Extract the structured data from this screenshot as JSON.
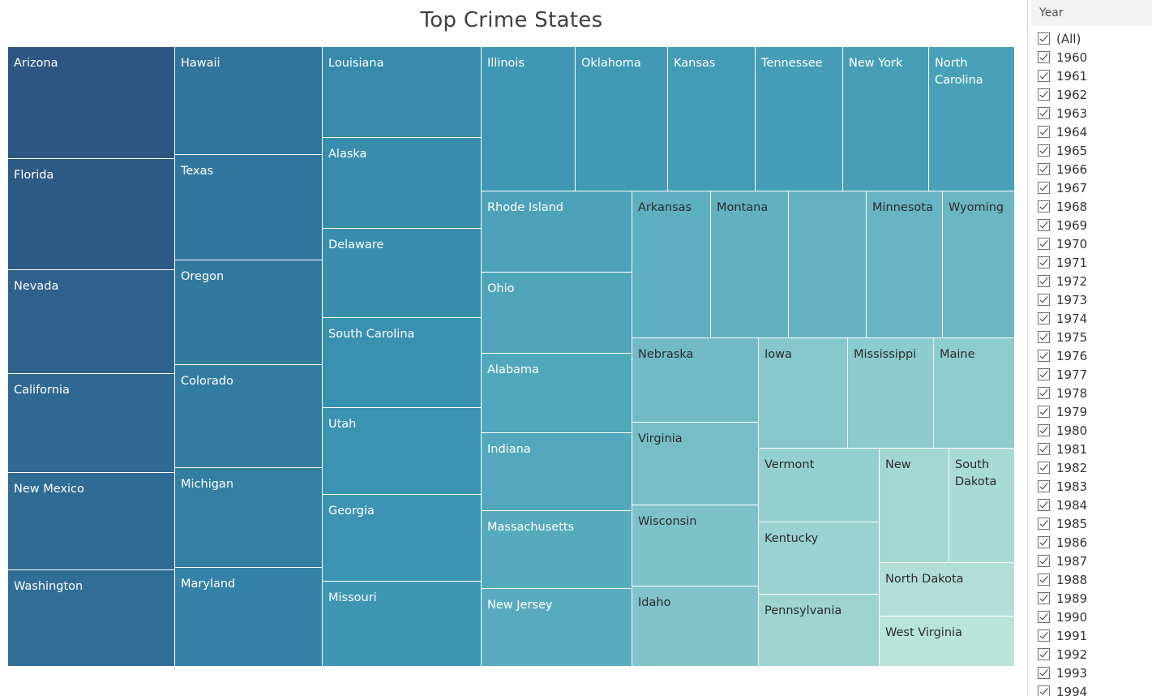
{
  "chart_data": {
    "type": "treemap",
    "title": "Top Crime States",
    "color_low": "#bde6d9",
    "color_high": "#2d5683",
    "tiles": [
      {
        "state": "Arizona"
      },
      {
        "state": "Florida"
      },
      {
        "state": "Nevada"
      },
      {
        "state": "California"
      },
      {
        "state": "New Mexico"
      },
      {
        "state": "Washington"
      },
      {
        "state": "Hawaii"
      },
      {
        "state": "Texas"
      },
      {
        "state": "Oregon"
      },
      {
        "state": "Colorado"
      },
      {
        "state": "Michigan"
      },
      {
        "state": "Maryland"
      },
      {
        "state": "Louisiana"
      },
      {
        "state": "Alaska"
      },
      {
        "state": "Delaware"
      },
      {
        "state": "South Carolina"
      },
      {
        "state": "Utah"
      },
      {
        "state": "Georgia"
      },
      {
        "state": "Missouri"
      },
      {
        "state": "Illinois"
      },
      {
        "state": "Oklahoma"
      },
      {
        "state": "Kansas"
      },
      {
        "state": "Tennessee"
      },
      {
        "state": "New York"
      },
      {
        "state": "North Carolina"
      },
      {
        "state": "Rhode Island"
      },
      {
        "state": "Ohio"
      },
      {
        "state": "Alabama"
      },
      {
        "state": "Indiana"
      },
      {
        "state": "Massachusetts"
      },
      {
        "state": "New Jersey"
      },
      {
        "state": "Arkansas"
      },
      {
        "state": "Montana"
      },
      {
        "state": ""
      },
      {
        "state": "Minnesota"
      },
      {
        "state": "Wyoming"
      },
      {
        "state": "Nebraska"
      },
      {
        "state": "Virginia"
      },
      {
        "state": "Wisconsin"
      },
      {
        "state": "Idaho"
      },
      {
        "state": "Iowa"
      },
      {
        "state": "Mississippi"
      },
      {
        "state": "Maine"
      },
      {
        "state": "Vermont"
      },
      {
        "state": "Kentucky"
      },
      {
        "state": "Pennsylvania"
      },
      {
        "state": "New"
      },
      {
        "state": "South Dakota"
      },
      {
        "state": "North Dakota"
      },
      {
        "state": "West Virginia"
      }
    ]
  },
  "filter": {
    "title": "Year",
    "options": [
      "(All)",
      "1960",
      "1961",
      "1962",
      "1963",
      "1964",
      "1965",
      "1966",
      "1967",
      "1968",
      "1969",
      "1970",
      "1971",
      "1972",
      "1973",
      "1974",
      "1975",
      "1976",
      "1977",
      "1978",
      "1979",
      "1980",
      "1981",
      "1982",
      "1983",
      "1984",
      "1985",
      "1986",
      "1987",
      "1988",
      "1989",
      "1990",
      "1991",
      "1992",
      "1993",
      "1994"
    ]
  }
}
